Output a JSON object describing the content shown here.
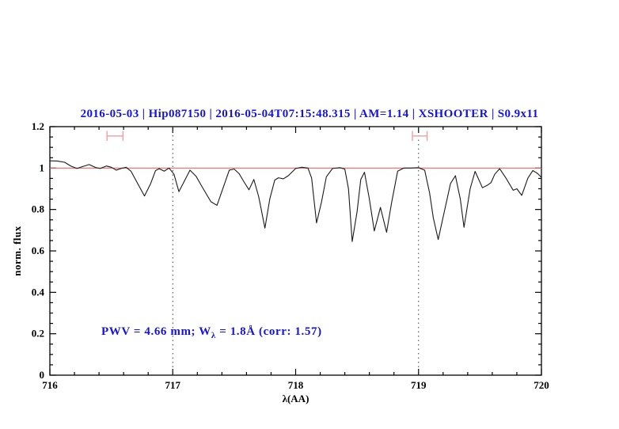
{
  "figure": {
    "title": "2016-05-03 | Hip087150 | 2016-05-04T07:15:48.315 | AM=1.14 | XSHOOTER | S0.9x11",
    "annotation": {
      "pre": "PWV = 4.66 mm; W",
      "sub": "λ",
      "post": " = 1.8Å (corr: 1.57)"
    },
    "colors": {
      "title_blue": "#1414dd",
      "annotation_blue": "#1414dd",
      "continuum_red": "#e56a6a",
      "marker_red": "#f29d9d",
      "spectrum_black": "#1a1a1a",
      "axis_black": "#000000",
      "dotted_line": "#3a3a3a"
    }
  },
  "chart_data": {
    "type": "line",
    "title": "2016-05-03 | Hip087150 | 2016-05-04T07:15:48.315 | AM=1.14 | XSHOOTER | S0.9x11",
    "xlabel": "λ(AA)",
    "ylabel": "norm. flux",
    "xlim": [
      716,
      720
    ],
    "ylim": [
      0,
      1.2
    ],
    "x_major_ticks": [
      716,
      717,
      718,
      719,
      720
    ],
    "x_tick_labels": [
      "716",
      "717",
      "718",
      "719",
      "720"
    ],
    "x_minor_step": 0.2,
    "y_major_ticks": [
      0,
      0.2,
      0.4,
      0.6,
      0.8,
      1,
      1.2
    ],
    "y_tick_labels": [
      "0",
      "0.2",
      "0.4",
      "0.6",
      "0.8",
      "1",
      "1.2"
    ],
    "y_minor_step": 0.05,
    "grid": false,
    "legend": false,
    "dotted_vlines": [
      717,
      719
    ],
    "continuum_line_y": 1.0,
    "range_markers": [
      {
        "x_min": 716.465,
        "x_max": 716.595,
        "y": 1.155,
        "cap_half_height": 0.024
      },
      {
        "x_min": 718.95,
        "x_max": 719.07,
        "y": 1.155,
        "cap_half_height": 0.024
      }
    ],
    "annotation_text": "PWV = 4.66 mm; W_λ = 1.8Å (corr: 1.57)",
    "series": [
      {
        "name": "telluric-water-spectrum",
        "points": [
          [
            716.0,
            1.035
          ],
          [
            716.06,
            1.034
          ],
          [
            716.12,
            1.028
          ],
          [
            716.17,
            1.01
          ],
          [
            716.22,
            0.998
          ],
          [
            716.27,
            1.008
          ],
          [
            716.32,
            1.017
          ],
          [
            716.37,
            1.003
          ],
          [
            716.41,
            0.998
          ],
          [
            716.46,
            1.01
          ],
          [
            716.5,
            1.004
          ],
          [
            716.54,
            0.99
          ],
          [
            716.58,
            0.998
          ],
          [
            716.62,
            1.004
          ],
          [
            716.66,
            0.985
          ],
          [
            716.71,
            0.93
          ],
          [
            716.77,
            0.865
          ],
          [
            716.82,
            0.925
          ],
          [
            716.86,
            0.988
          ],
          [
            716.89,
            0.997
          ],
          [
            716.93,
            0.985
          ],
          [
            716.97,
            1.0
          ],
          [
            717.01,
            0.97
          ],
          [
            717.05,
            0.886
          ],
          [
            717.09,
            0.932
          ],
          [
            717.14,
            0.99
          ],
          [
            717.19,
            0.96
          ],
          [
            717.25,
            0.898
          ],
          [
            717.31,
            0.838
          ],
          [
            717.36,
            0.82
          ],
          [
            717.41,
            0.905
          ],
          [
            717.46,
            0.99
          ],
          [
            717.5,
            0.995
          ],
          [
            717.54,
            0.973
          ],
          [
            717.58,
            0.933
          ],
          [
            717.62,
            0.895
          ],
          [
            717.66,
            0.945
          ],
          [
            717.7,
            0.86
          ],
          [
            717.75,
            0.71
          ],
          [
            717.79,
            0.852
          ],
          [
            717.83,
            0.942
          ],
          [
            717.86,
            0.953
          ],
          [
            717.9,
            0.948
          ],
          [
            717.94,
            0.963
          ],
          [
            718.0,
            0.998
          ],
          [
            718.05,
            1.004
          ],
          [
            718.1,
            1.0
          ],
          [
            718.13,
            0.952
          ],
          [
            718.17,
            0.735
          ],
          [
            718.21,
            0.835
          ],
          [
            718.25,
            0.958
          ],
          [
            718.3,
            0.998
          ],
          [
            718.36,
            1.002
          ],
          [
            718.4,
            0.995
          ],
          [
            718.43,
            0.9
          ],
          [
            718.46,
            0.645
          ],
          [
            718.5,
            0.79
          ],
          [
            718.53,
            0.945
          ],
          [
            718.56,
            0.98
          ],
          [
            718.6,
            0.85
          ],
          [
            718.64,
            0.696
          ],
          [
            718.69,
            0.81
          ],
          [
            718.74,
            0.69
          ],
          [
            718.78,
            0.83
          ],
          [
            718.83,
            0.985
          ],
          [
            718.88,
            1.0
          ],
          [
            718.94,
            1.0
          ],
          [
            719.0,
            1.002
          ],
          [
            719.05,
            0.99
          ],
          [
            719.09,
            0.88
          ],
          [
            719.12,
            0.76
          ],
          [
            719.16,
            0.655
          ],
          [
            719.21,
            0.79
          ],
          [
            719.26,
            0.925
          ],
          [
            719.3,
            0.963
          ],
          [
            719.34,
            0.85
          ],
          [
            719.37,
            0.714
          ],
          [
            719.42,
            0.9
          ],
          [
            719.46,
            0.984
          ],
          [
            719.52,
            0.905
          ],
          [
            719.56,
            0.917
          ],
          [
            719.59,
            0.93
          ],
          [
            719.62,
            0.97
          ],
          [
            719.66,
            0.997
          ],
          [
            719.71,
            0.953
          ],
          [
            719.77,
            0.893
          ],
          [
            719.8,
            0.9
          ],
          [
            719.84,
            0.868
          ],
          [
            719.89,
            0.952
          ],
          [
            719.93,
            0.988
          ],
          [
            719.97,
            0.973
          ],
          [
            720.0,
            0.955
          ]
        ]
      }
    ]
  }
}
